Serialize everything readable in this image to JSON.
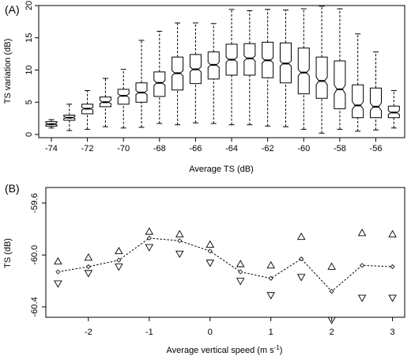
{
  "chart_data": [
    {
      "type": "boxplot",
      "panel_label": "(A)",
      "xlabel": "Average TS (dB)",
      "ylabel": "TS variation (dB)",
      "xlim": [
        -74.7,
        -54.4
      ],
      "ylim": [
        -0.5,
        20
      ],
      "x_ticks": [
        -74,
        -72,
        -70,
        -68,
        -66,
        -64,
        -62,
        -60,
        -58,
        -56
      ],
      "x_tick_labels": [
        "-74",
        "-72",
        "-70",
        "-68",
        "-66",
        "-64",
        "-62",
        "-60",
        "-58",
        "-56"
      ],
      "y_ticks": [
        0,
        5,
        10,
        15,
        20
      ],
      "y_tick_labels": [
        "0",
        "5",
        "10",
        "15",
        "20"
      ],
      "notched": true,
      "boxes": [
        {
          "x": -74,
          "min": 1.0,
          "q1": 1.3,
          "median": 1.6,
          "q3": 2.0,
          "max": 2.3,
          "notch_lo": 1.5,
          "notch_hi": 1.8
        },
        {
          "x": -73,
          "min": 0.6,
          "q1": 2.2,
          "median": 2.6,
          "q3": 3.0,
          "max": 4.7,
          "notch_lo": 2.5,
          "notch_hi": 2.8
        },
        {
          "x": -72,
          "min": 0.8,
          "q1": 3.2,
          "median": 4.0,
          "q3": 4.7,
          "max": 6.8,
          "notch_lo": 3.8,
          "notch_hi": 4.2
        },
        {
          "x": -71,
          "min": 1.2,
          "q1": 4.3,
          "median": 5.0,
          "q3": 5.8,
          "max": 8.7,
          "notch_lo": 4.8,
          "notch_hi": 5.3
        },
        {
          "x": -70,
          "min": 1.0,
          "q1": 4.7,
          "median": 6.0,
          "q3": 7.0,
          "max": 10.1,
          "notch_lo": 5.7,
          "notch_hi": 6.3
        },
        {
          "x": -69,
          "min": 1.1,
          "q1": 5.0,
          "median": 6.5,
          "q3": 8.0,
          "max": 14.6,
          "notch_lo": 6.2,
          "notch_hi": 6.8
        },
        {
          "x": -68,
          "min": 1.7,
          "q1": 5.9,
          "median": 8.0,
          "q3": 9.7,
          "max": 16.0,
          "notch_lo": 7.6,
          "notch_hi": 8.4
        },
        {
          "x": -67,
          "min": 1.5,
          "q1": 6.9,
          "median": 9.5,
          "q3": 12.0,
          "max": 17.3,
          "notch_lo": 9.1,
          "notch_hi": 9.9
        },
        {
          "x": -66,
          "min": 1.8,
          "q1": 7.9,
          "median": 10.1,
          "q3": 12.4,
          "max": 17.3,
          "notch_lo": 9.7,
          "notch_hi": 10.5
        },
        {
          "x": -65,
          "min": 1.7,
          "q1": 8.6,
          "median": 10.8,
          "q3": 12.8,
          "max": 17.2,
          "notch_lo": 10.4,
          "notch_hi": 11.2
        },
        {
          "x": -64,
          "min": 1.5,
          "q1": 9.2,
          "median": 11.6,
          "q3": 14.0,
          "max": 19.4,
          "notch_lo": 11.2,
          "notch_hi": 12.0
        },
        {
          "x": -63,
          "min": 1.5,
          "q1": 9.2,
          "median": 11.8,
          "q3": 14.1,
          "max": 19.2,
          "notch_lo": 11.4,
          "notch_hi": 12.2
        },
        {
          "x": -62,
          "min": 1.3,
          "q1": 8.8,
          "median": 11.5,
          "q3": 14.3,
          "max": 19.4,
          "notch_lo": 11.1,
          "notch_hi": 11.9
        },
        {
          "x": -61,
          "min": 1.2,
          "q1": 8.0,
          "median": 11.0,
          "q3": 14.2,
          "max": 19.3,
          "notch_lo": 10.6,
          "notch_hi": 11.4
        },
        {
          "x": -60,
          "min": 0.8,
          "q1": 6.3,
          "median": 9.6,
          "q3": 13.4,
          "max": 19.5,
          "notch_lo": 9.1,
          "notch_hi": 10.1
        },
        {
          "x": -59,
          "min": 0.2,
          "q1": 5.6,
          "median": 8.3,
          "q3": 12.0,
          "max": 19.9,
          "notch_lo": 7.7,
          "notch_hi": 8.9
        },
        {
          "x": -58,
          "min": 0.8,
          "q1": 4.0,
          "median": 7.0,
          "q3": 11.4,
          "max": 19.5,
          "notch_lo": 6.3,
          "notch_hi": 7.7
        },
        {
          "x": -57,
          "min": 0.5,
          "q1": 2.6,
          "median": 4.5,
          "q3": 7.7,
          "max": 15.6,
          "notch_lo": 3.9,
          "notch_hi": 5.1
        },
        {
          "x": -56,
          "min": 0.7,
          "q1": 2.6,
          "median": 4.3,
          "q3": 7.2,
          "max": 12.8,
          "notch_lo": 3.7,
          "notch_hi": 4.9
        },
        {
          "x": -55,
          "min": 1.0,
          "q1": 2.6,
          "median": 3.4,
          "q3": 4.4,
          "max": 6.8,
          "notch_lo": 3.1,
          "notch_hi": 3.7
        }
      ]
    },
    {
      "type": "line",
      "panel_label": "(B)",
      "xlabel": "Average vertical speed (m s",
      "xlabel_superscript": "-1",
      "xlabel_suffix": ")",
      "ylabel": "TS (dB)",
      "xlim": [
        -2.7,
        3.2
      ],
      "ylim": [
        -60.48,
        -59.48
      ],
      "x_ticks": [
        -2,
        -1,
        0,
        1,
        2,
        3
      ],
      "x_tick_labels": [
        "-2",
        "-1",
        "0",
        "1",
        "2",
        "3"
      ],
      "y_ticks": [
        -59.6,
        -60.0,
        -60.4
      ],
      "y_tick_labels": [
        "-59.6",
        "-60.0",
        "-60.4"
      ],
      "x": [
        -2.5,
        -2.0,
        -1.5,
        -1.0,
        -0.5,
        0.0,
        0.5,
        1.0,
        1.5,
        2.0,
        2.5,
        3.0
      ],
      "series": [
        {
          "style": "dotted-line-diamond",
          "values": [
            -60.13,
            -60.09,
            -60.04,
            -59.87,
            -59.89,
            -59.97,
            -60.13,
            -60.18,
            -60.03,
            -60.28,
            -60.08,
            -60.09
          ]
        },
        {
          "style": "triangle-up",
          "values": [
            -60.05,
            -60.02,
            -59.97,
            -59.82,
            -59.84,
            -59.92,
            -60.07,
            -60.08,
            -59.86,
            -60.09,
            -59.83,
            -59.84
          ]
        },
        {
          "style": "triangle-down",
          "values": [
            -60.22,
            -60.14,
            -60.09,
            -59.94,
            -59.99,
            -60.06,
            -60.2,
            -60.31,
            -60.17,
            -60.5,
            -60.33,
            -60.33
          ]
        }
      ]
    }
  ]
}
